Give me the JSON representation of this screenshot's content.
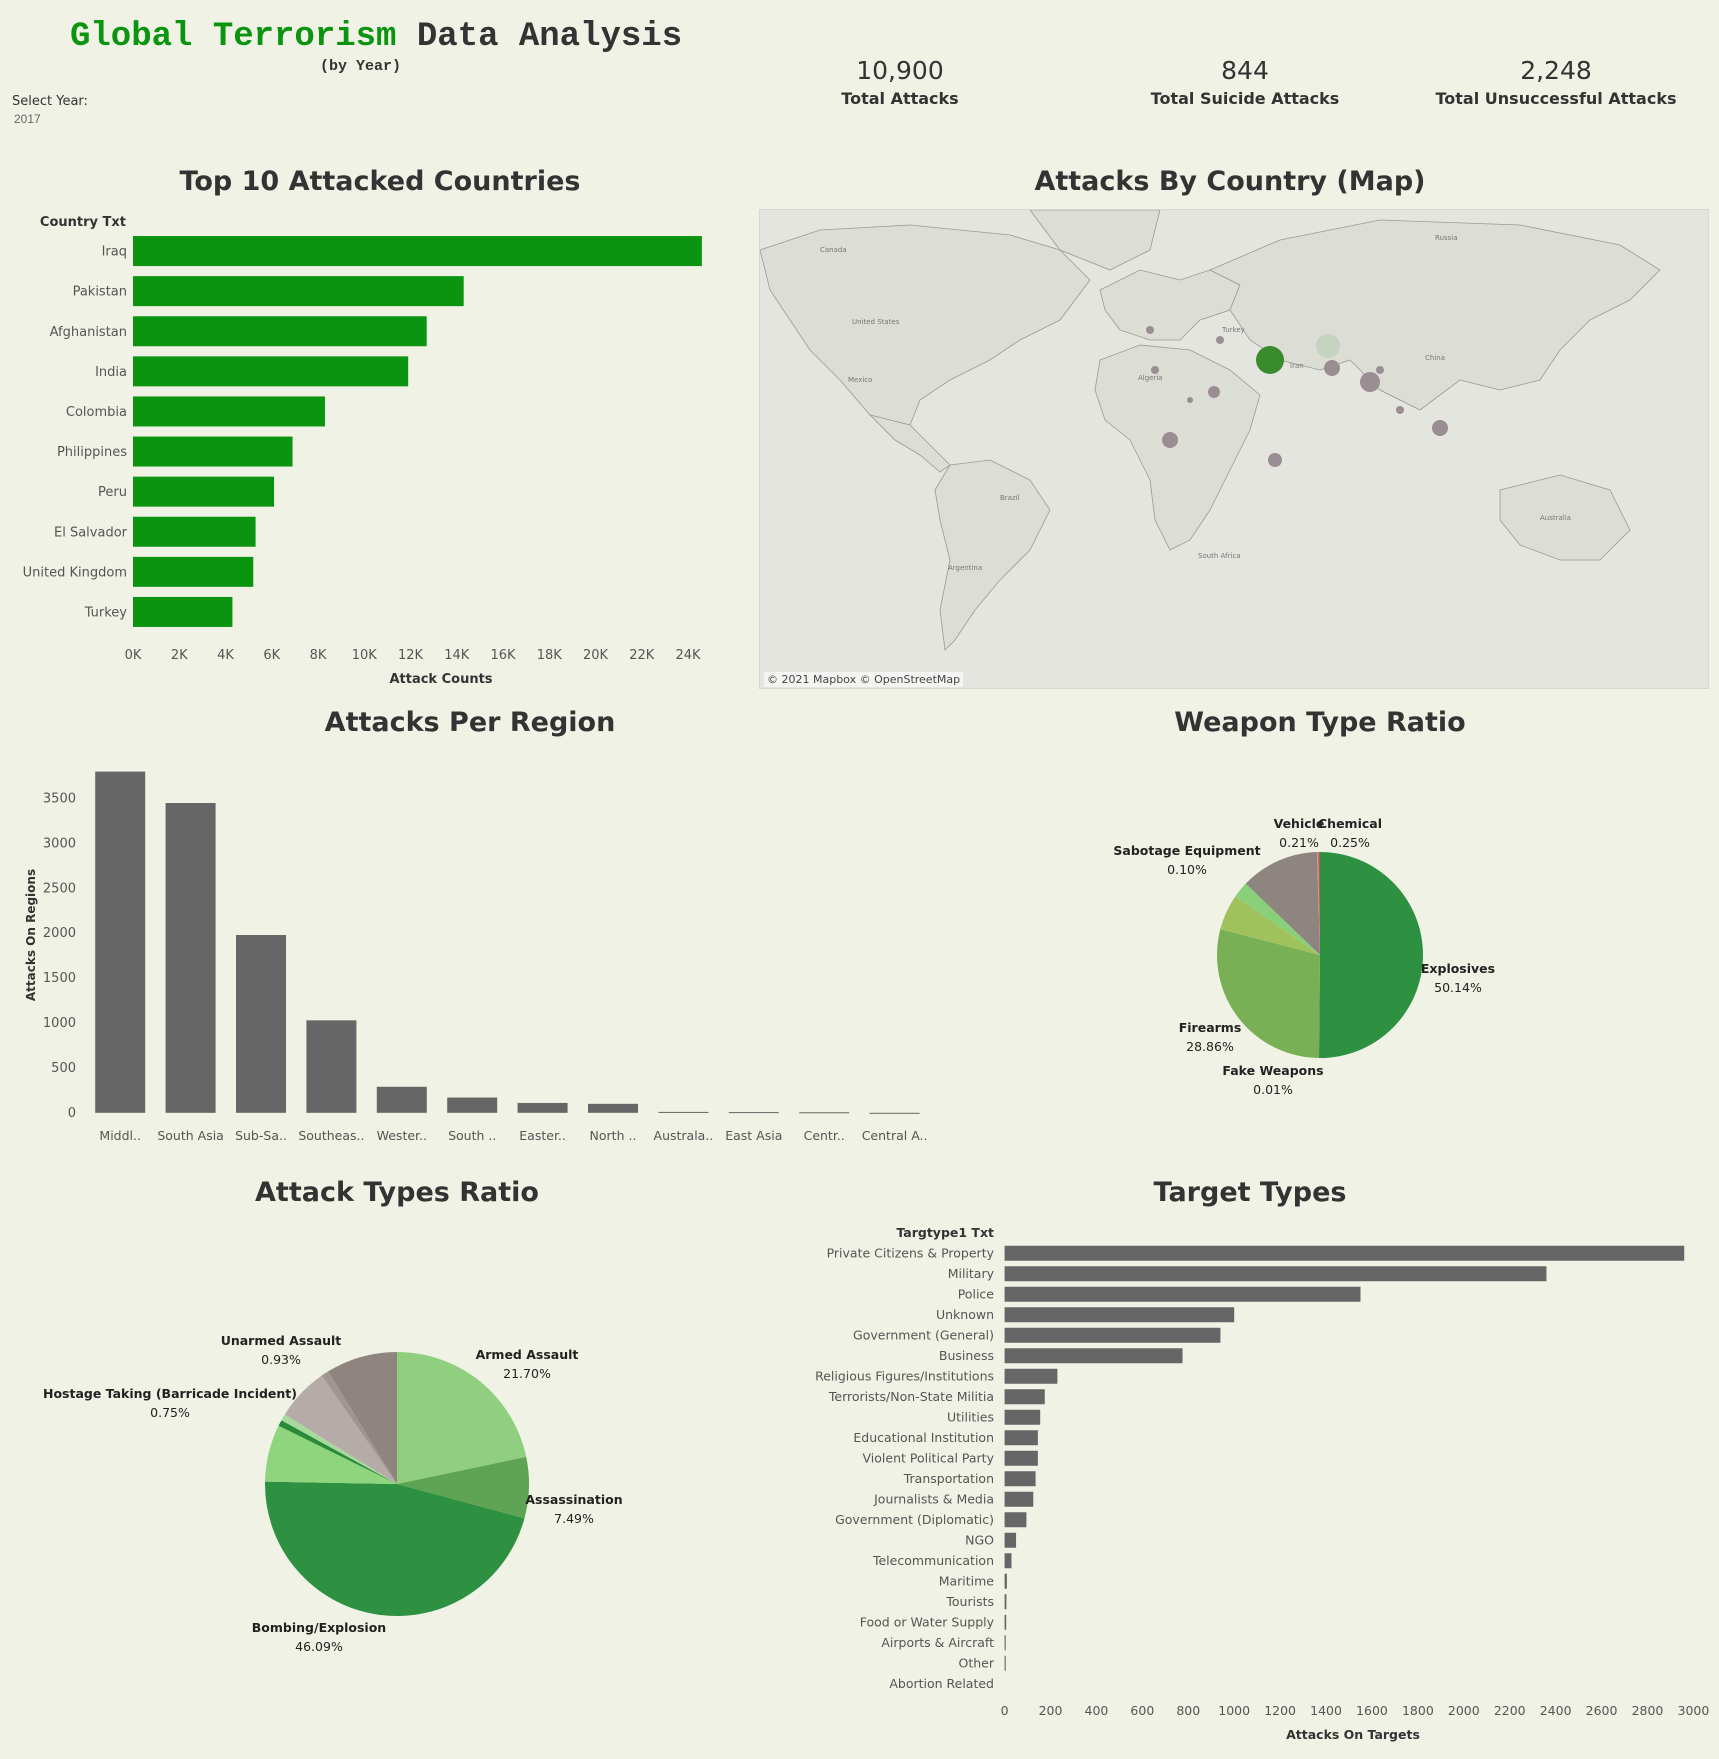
{
  "header": {
    "title_green": "Global Terrorism",
    "title_dark": "Data Analysis",
    "subtitle": "(by Year)",
    "select_label": "Select Year:",
    "select_value": "2017"
  },
  "kpis": [
    {
      "value": "10,900",
      "label": "Total Attacks"
    },
    {
      "value": "844",
      "label": "Total Suicide Attacks"
    },
    {
      "value": "2,248",
      "label": "Total Unsuccessful Attacks"
    }
  ],
  "sections": {
    "top10": "Top 10 Attacked Countries",
    "map": "Attacks By Country (Map)",
    "region": "Attacks Per Region",
    "weapon": "Weapon Type Ratio",
    "attack_types": "Attack Types Ratio",
    "targets": "Target Types"
  },
  "map": {
    "attribution": "© 2021 Mapbox © OpenStreetMap",
    "labels": [
      "Canada",
      "United States",
      "Mexico",
      "Brazil",
      "Argentina",
      "Algeria",
      "South Africa",
      "Iran",
      "China",
      "Russia",
      "Australia",
      "Turkey"
    ],
    "colors": {
      "land": "#e4e5de",
      "bubble": "#9a8e93",
      "highlight": "#3a8a2e",
      "light": "#c6d3c0"
    }
  },
  "colors": {
    "background": "#f0f2e6",
    "bar_green": "#0a9410",
    "bar_gray": "#666666",
    "pie": [
      "#2e9142",
      "#79b055",
      "#9fc25c",
      "#8acf7a",
      "#8e8480",
      "#c2564f",
      "#5fa453",
      "#8fcf7f",
      "#2b8a3a",
      "#b5aca9"
    ]
  },
  "chart_data": [
    {
      "type": "bar",
      "orientation": "horizontal",
      "title": "Top 10 Attacked Countries",
      "ylabel": "Country Txt",
      "xlabel": "Attack Counts",
      "categories": [
        "Iraq",
        "Pakistan",
        "Afghanistan",
        "India",
        "Colombia",
        "Philippines",
        "Peru",
        "El Salvador",
        "United Kingdom",
        "Turkey"
      ],
      "values": [
        24600,
        14300,
        12700,
        11900,
        8300,
        6900,
        6100,
        5300,
        5200,
        4300
      ],
      "xlim": [
        0,
        25600
      ],
      "ticks": [
        0,
        2000,
        4000,
        6000,
        8000,
        10000,
        12000,
        14000,
        16000,
        18000,
        20000,
        22000,
        24000
      ],
      "tick_labels": [
        "0K",
        "2K",
        "4K",
        "6K",
        "8K",
        "10K",
        "12K",
        "14K",
        "16K",
        "18K",
        "20K",
        "22K",
        "24K"
      ],
      "color": "#0a9410"
    },
    {
      "type": "bar",
      "title": "Attacks Per Region",
      "ylabel": "Attacks On Regions",
      "categories": [
        "Middl..",
        "South Asia",
        "Sub-Sa..",
        "Southeas..",
        "Wester..",
        "South ..",
        "Easter..",
        "North ..",
        "Australa..",
        "East Asia",
        "Centr..",
        "Central A.."
      ],
      "values": [
        3800,
        3450,
        1980,
        1030,
        290,
        170,
        110,
        100,
        10,
        8,
        6,
        0
      ],
      "ylim": [
        -80,
        3840
      ],
      "ticks": [
        0,
        500,
        1000,
        1500,
        2000,
        2500,
        3000,
        3500
      ],
      "tick_labels": [
        "0",
        "500",
        "1000",
        "1500",
        "2000",
        "2500",
        "3000",
        "3500"
      ],
      "color": "#666666"
    },
    {
      "type": "pie",
      "title": "Weapon Type Ratio",
      "slices": [
        {
          "label": "Explosives",
          "pct": "50.14%",
          "value": 50.14,
          "color": "#2e9142"
        },
        {
          "label": "Fake Weapons",
          "pct": "0.01%",
          "value": 0.01,
          "color": "#4a8f3a"
        },
        {
          "label": "Firearms",
          "pct": "28.86%",
          "value": 28.86,
          "color": "#79b055"
        },
        {
          "label": "",
          "pct": "",
          "value": 5.6,
          "color": "#9fc25c"
        },
        {
          "label": "",
          "pct": "",
          "value": 2.5,
          "color": "#8acf7a"
        },
        {
          "label": "Sabotage Equipment",
          "pct": "0.10%",
          "value": 0.1,
          "color": "#6fae5f"
        },
        {
          "label": "",
          "pct": "",
          "value": 12.3,
          "color": "#8e8480"
        },
        {
          "label": "Vehicle",
          "pct": "0.21%",
          "value": 0.21,
          "color": "#b89a8c"
        },
        {
          "label": "Chemical",
          "pct": "0.25%",
          "value": 0.25,
          "color": "#c2564f"
        }
      ]
    },
    {
      "type": "pie",
      "title": "Attack Types Ratio",
      "slices": [
        {
          "label": "Armed Assault",
          "pct": "21.70%",
          "value": 21.7,
          "color": "#8fcf7f"
        },
        {
          "label": "Assassination",
          "pct": "7.49%",
          "value": 7.49,
          "color": "#5fa453"
        },
        {
          "label": "Bombing/Explosion",
          "pct": "46.09%",
          "value": 46.09,
          "color": "#2e9142"
        },
        {
          "label": "",
          "pct": "",
          "value": 7.0,
          "color": "#8fd57e"
        },
        {
          "label": "Hostage Taking (Barricade Incident)",
          "pct": "0.75%",
          "value": 0.75,
          "color": "#2b8a3a"
        },
        {
          "label": "",
          "pct": "",
          "value": 0.8,
          "color": "#a6d99a"
        },
        {
          "label": "",
          "pct": "",
          "value": 6.5,
          "color": "#b5aca9"
        },
        {
          "label": "Unarmed Assault",
          "pct": "0.93%",
          "value": 0.93,
          "color": "#9f9690"
        },
        {
          "label": "",
          "pct": "",
          "value": 8.74,
          "color": "#8e8480"
        }
      ]
    },
    {
      "type": "bar",
      "orientation": "horizontal",
      "title": "Target Types",
      "ylabel": "Targtype1 Txt",
      "xlabel": "Attacks On Targets",
      "categories": [
        "Private Citizens & Property",
        "Military",
        "Police",
        "Unknown",
        "Government (General)",
        "Business",
        "Religious Figures/Institutions",
        "Terrorists/Non-State Militia",
        "Utilities",
        "Educational Institution",
        "Violent Political Party",
        "Transportation",
        "Journalists & Media",
        "Government (Diplomatic)",
        "NGO",
        "Telecommunication",
        "Maritime",
        "Tourists",
        "Food or Water Supply",
        "Airports & Aircraft",
        "Other",
        "Abortion Related"
      ],
      "values": [
        2960,
        2360,
        1550,
        1000,
        940,
        775,
        230,
        175,
        155,
        145,
        145,
        135,
        125,
        95,
        50,
        30,
        10,
        8,
        7,
        5,
        5,
        0
      ],
      "xlim": [
        -20,
        3020
      ],
      "ticks": [
        0,
        200,
        400,
        600,
        800,
        1000,
        1200,
        1400,
        1600,
        1800,
        2000,
        2200,
        2400,
        2600,
        2800,
        3000
      ],
      "tick_labels": [
        "0",
        "200",
        "400",
        "600",
        "800",
        "1000",
        "1200",
        "1400",
        "1600",
        "1800",
        "2000",
        "2200",
        "2400",
        "2600",
        "2800",
        "3000"
      ],
      "color": "#666666"
    }
  ]
}
